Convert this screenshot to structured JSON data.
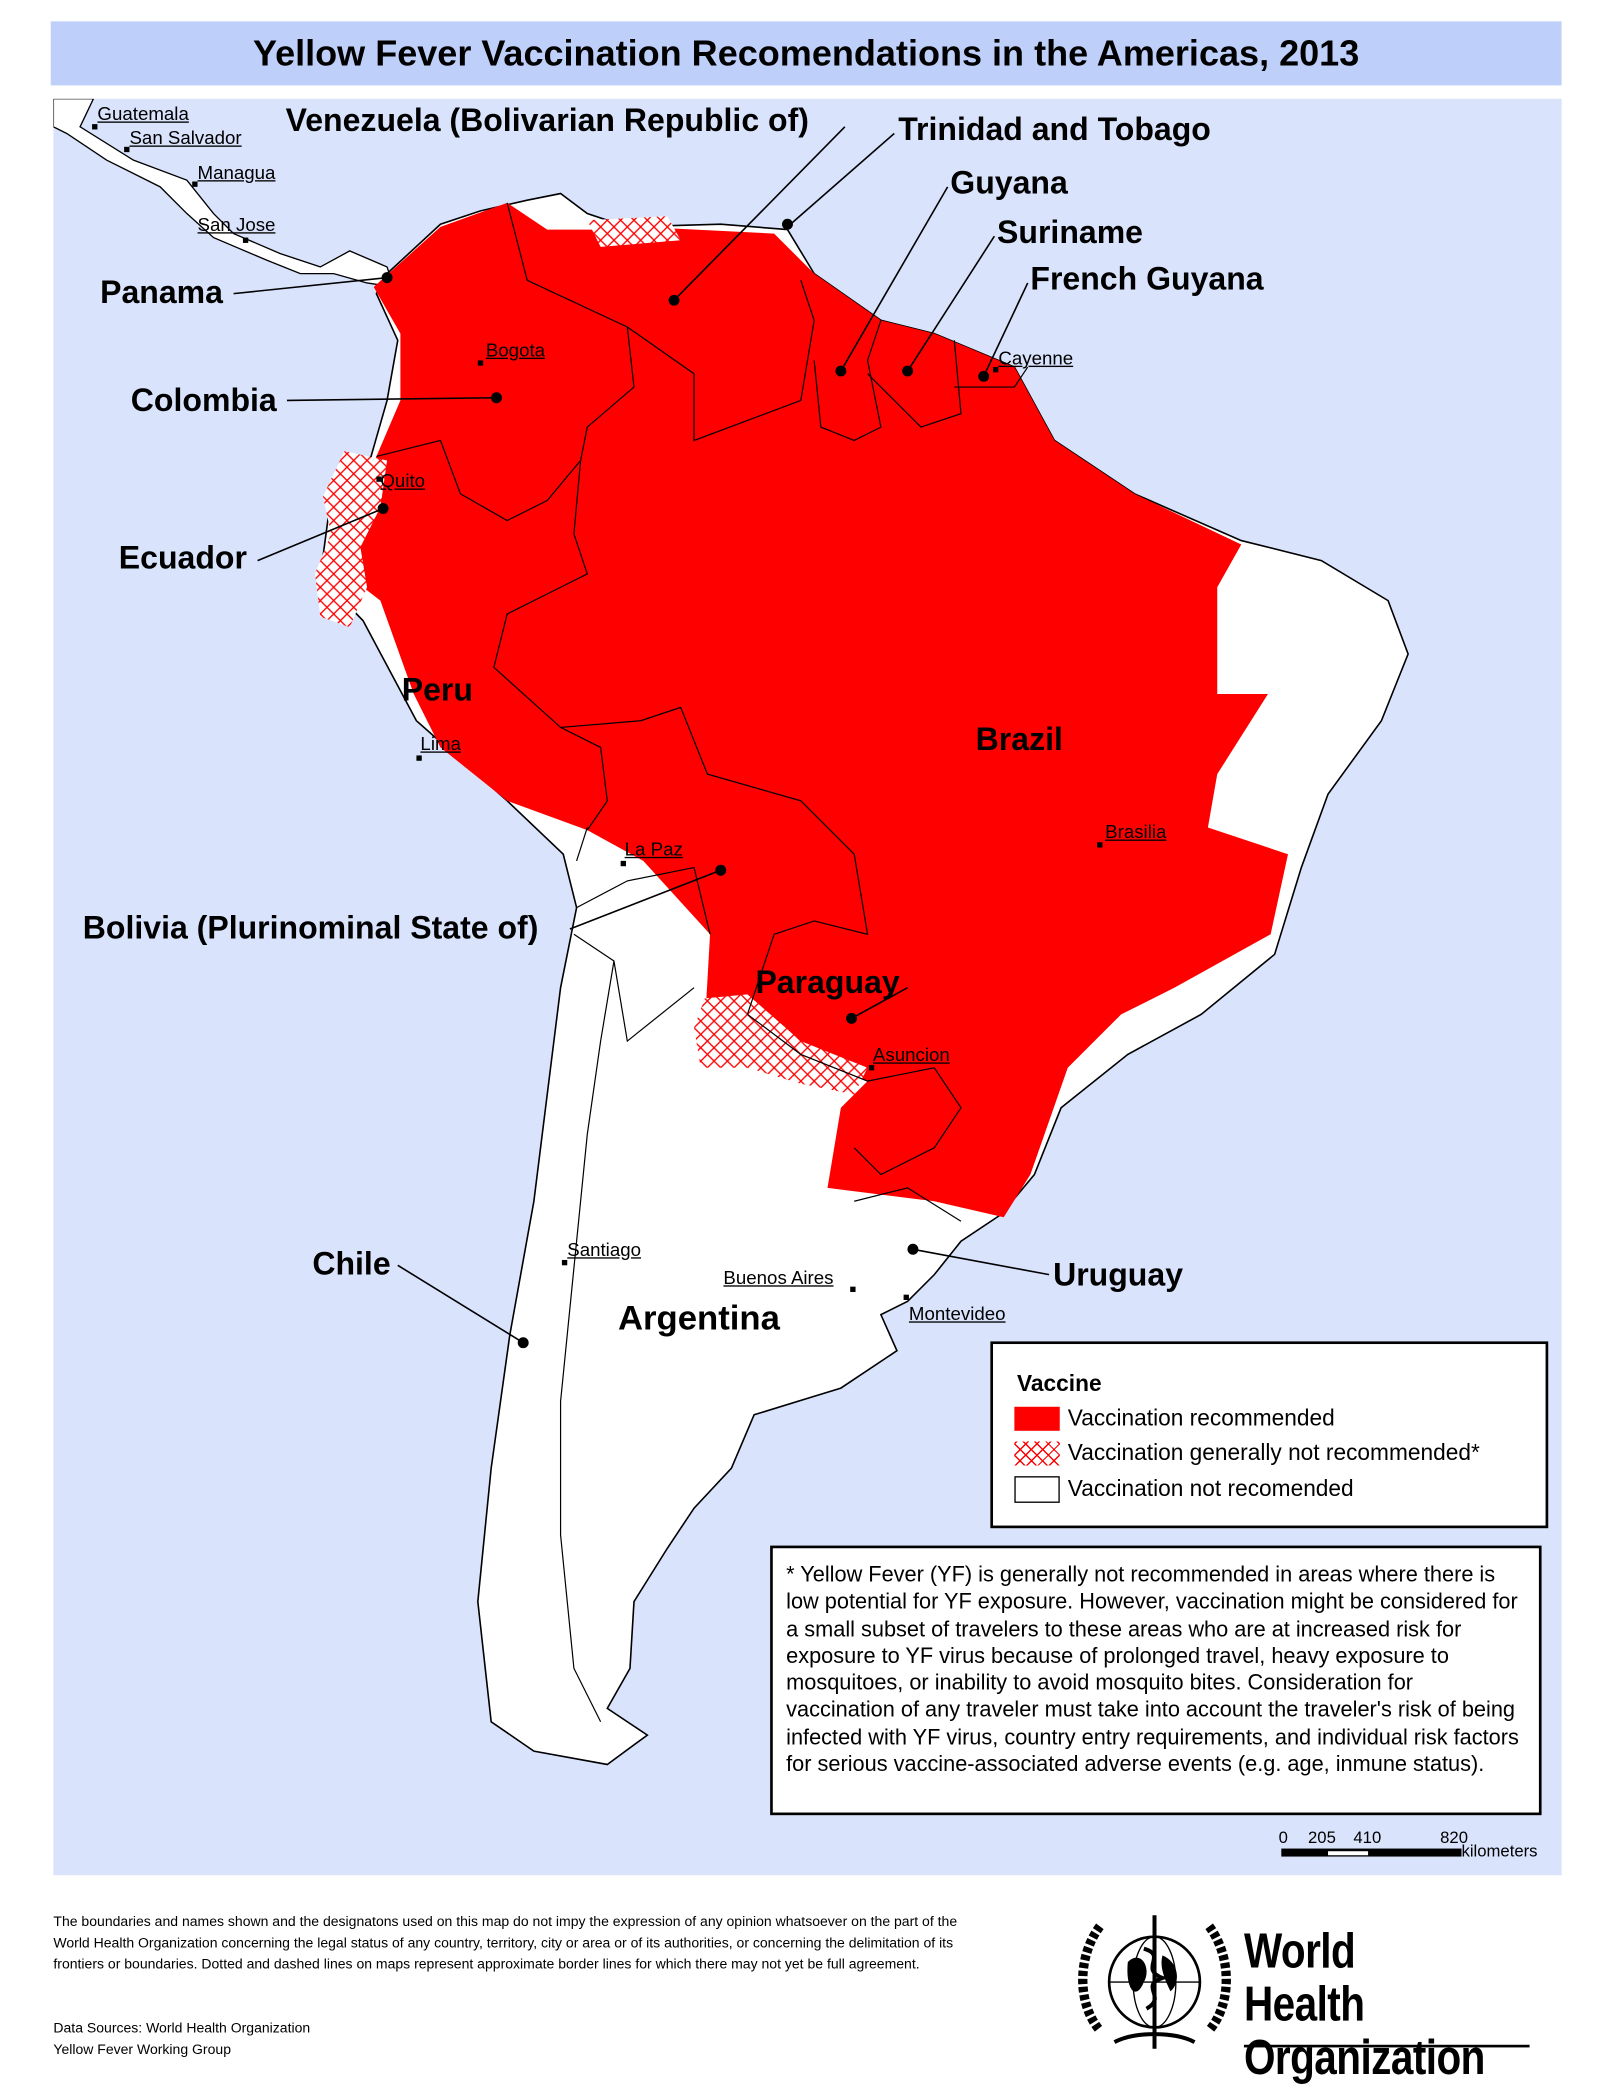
{
  "title": "Yellow Fever Vaccination Recomendations in the Americas, 2013",
  "colors": {
    "recommended": "#ff0000",
    "not_generally": "#ff0000",
    "not_recommended": "#ffffff",
    "water": "#d9e3fc",
    "title_bg": "#bed0fa"
  },
  "countries": {
    "venezuela": "Venezuela (Bolivarian Republic of)",
    "trinidad": "Trinidad and Tobago",
    "guyana": "Guyana",
    "suriname": "Suriname",
    "french_guyana": "French Guyana",
    "panama": "Panama",
    "colombia": "Colombia",
    "ecuador": "Ecuador",
    "peru": "Peru",
    "brazil": "Brazil",
    "bolivia": "Bolivia (Plurinominal State of)",
    "paraguay": "Paraguay",
    "chile": "Chile",
    "argentina": "Argentina",
    "uruguay": "Uruguay"
  },
  "cities": {
    "guatemala": "Guatemala",
    "san_salvador": "San Salvador",
    "managua": "Managua",
    "san_jose": "San Jose",
    "bogota": "Bogota",
    "cayenne": "Cayenne",
    "quito": "Quito",
    "lima": "Lima",
    "brasilia": "Brasilia",
    "la_paz": "La Paz",
    "asuncion": "Asuncion",
    "santiago": "Santiago",
    "buenos_aires": "Buenos Aires",
    "montevideo": "Montevideo"
  },
  "legend": {
    "title": "Vaccine",
    "items": [
      {
        "label": "Vaccination recommended",
        "style": "solid-red"
      },
      {
        "label": "Vaccination generally not recommended*",
        "style": "red-hatch"
      },
      {
        "label": "Vaccination not recomended",
        "style": "white"
      }
    ]
  },
  "note": "* Yellow Fever (YF) is generally not recommended in areas where there is low potential for YF exposure. However, vaccination might be considered for a small subset of travelers to these areas who are at increased risk for exposure to YF virus because of prolonged travel, heavy exposure to mosquitoes, or inability to avoid mosquito bites. Consideration for vaccination of any traveler must take into account the traveler's risk of being infected with YF virus, country entry requirements, and individual risk factors for serious vaccine-associated adverse events (e.g. age, inmune status).",
  "scale": {
    "ticks": [
      "0",
      "205",
      "410",
      "820"
    ],
    "unit": "kilometers"
  },
  "disclaimer": "The boundaries and names shown and the designatons used on this map do not impy the expression of any opinion whatsoever on the part of the World Health Organization concerning the legal status of any country, territory, city or area or of its authorities, or concerning the delimitation of its frontiers or boundaries. Dotted and dashed lines on maps represent approximate border lines for which there may not yet be full agreement.",
  "sources": [
    "Data Sources: World Health Organization",
    "Yellow Fever Working Group"
  ],
  "logo": {
    "line1": "World Health",
    "line2": "Organization"
  }
}
